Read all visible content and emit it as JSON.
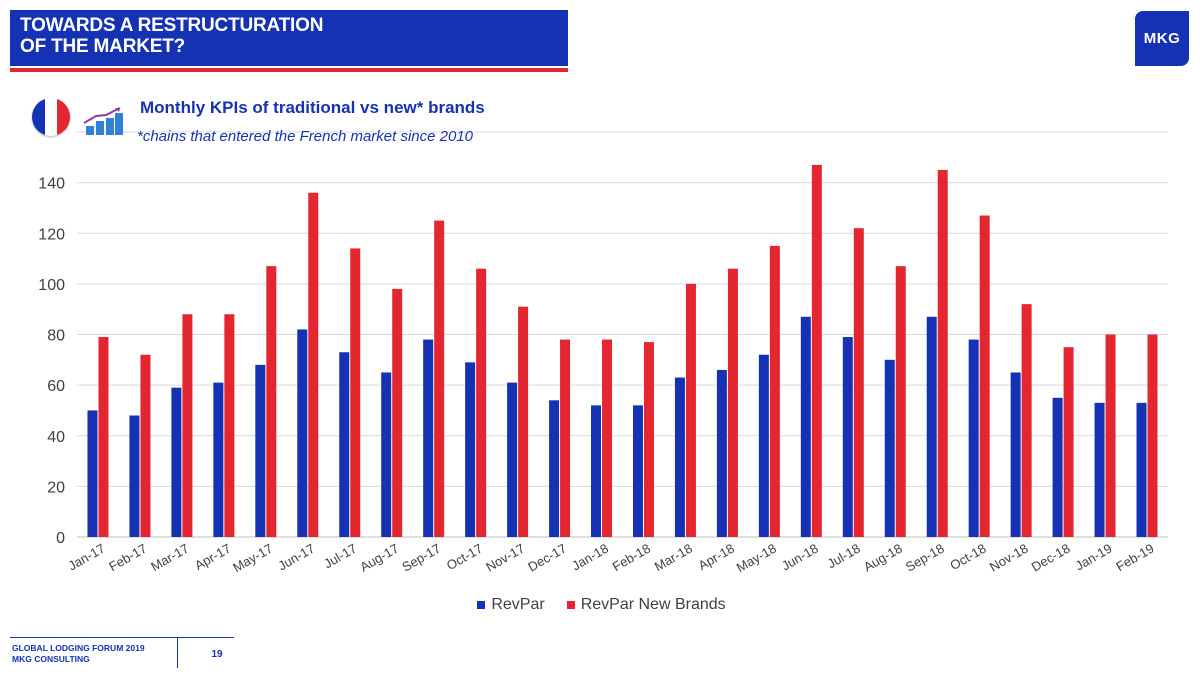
{
  "header": {
    "title_line1": "TOWARDS A RESTRUCTURATION",
    "title_line2": "OF THE MARKET?",
    "logo_text": "MKG"
  },
  "subtitle": "Monthly KPIs of traditional vs new* brands",
  "note": "*chains that entered the French market since 2010",
  "icons": {
    "flag": "france-flag-icon",
    "kpi": "bar-chart-trend-icon"
  },
  "colors": {
    "primary": "#1532b4",
    "accent": "#e3262f"
  },
  "chart_data": {
    "type": "bar",
    "categories": [
      "Jan-17",
      "Feb-17",
      "Mar-17",
      "Apr-17",
      "May-17",
      "Jun-17",
      "Jul-17",
      "Aug-17",
      "Sep-17",
      "Oct-17",
      "Nov-17",
      "Dec-17",
      "Jan-18",
      "Feb-18",
      "Mar-18",
      "Apr-18",
      "May-18",
      "Jun-18",
      "Jul-18",
      "Aug-18",
      "Sep-18",
      "Oct-18",
      "Nov-18",
      "Dec-18",
      "Jan-19",
      "Feb-19"
    ],
    "series": [
      {
        "name": "RevPar",
        "color": "#1532b4",
        "values": [
          50,
          48,
          59,
          61,
          68,
          82,
          73,
          65,
          78,
          69,
          61,
          54,
          52,
          52,
          63,
          66,
          72,
          87,
          79,
          70,
          87,
          78,
          65,
          55,
          53,
          53
        ]
      },
      {
        "name": "RevPar New Brands",
        "color": "#e3262f",
        "values": [
          79,
          72,
          88,
          88,
          107,
          136,
          114,
          98,
          125,
          106,
          91,
          78,
          78,
          77,
          100,
          106,
          115,
          147,
          122,
          107,
          145,
          127,
          92,
          75,
          80,
          80
        ]
      }
    ],
    "ylim": [
      0,
      160
    ],
    "yticks": [
      0,
      20,
      40,
      60,
      80,
      100,
      120,
      140
    ],
    "grid": true,
    "legend_position": "bottom"
  },
  "footer": {
    "line1": "GLOBAL LODGING FORUM 2019",
    "line2": "MKG CONSULTING",
    "page": "19"
  }
}
